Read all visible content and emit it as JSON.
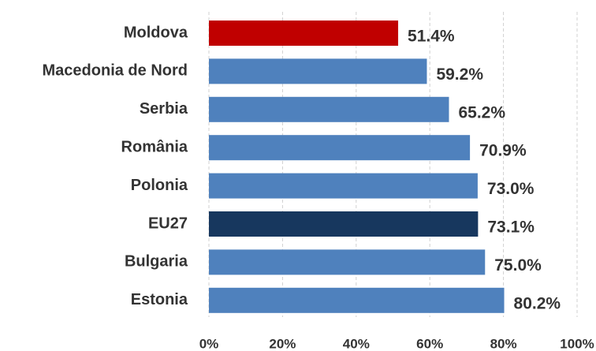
{
  "chart_data": {
    "type": "hbar",
    "categories": [
      "Moldova",
      "Macedonia de Nord",
      "Serbia",
      "România",
      "Polonia",
      "EU27",
      "Bulgaria",
      "Estonia"
    ],
    "values": [
      51.4,
      59.2,
      65.2,
      70.9,
      73.0,
      73.1,
      75.0,
      80.2
    ],
    "value_labels": [
      "51.4%",
      "59.2%",
      "65.2%",
      "70.9%",
      "73.0%",
      "73.1%",
      "75.0%",
      "80.2%"
    ],
    "colors": [
      "#c00000",
      "#4f81bd",
      "#4f81bd",
      "#4f81bd",
      "#4f81bd",
      "#17375e",
      "#4f81bd",
      "#4f81bd"
    ],
    "xlim": [
      0,
      100
    ],
    "xticks": [
      {
        "value": 0,
        "label": "0%"
      },
      {
        "value": 20,
        "label": "20%"
      },
      {
        "value": 40,
        "label": "40%"
      },
      {
        "value": 60,
        "label": "60%"
      },
      {
        "value": 80,
        "label": "80%"
      },
      {
        "value": 100,
        "label": "100%"
      }
    ],
    "grid": true
  }
}
